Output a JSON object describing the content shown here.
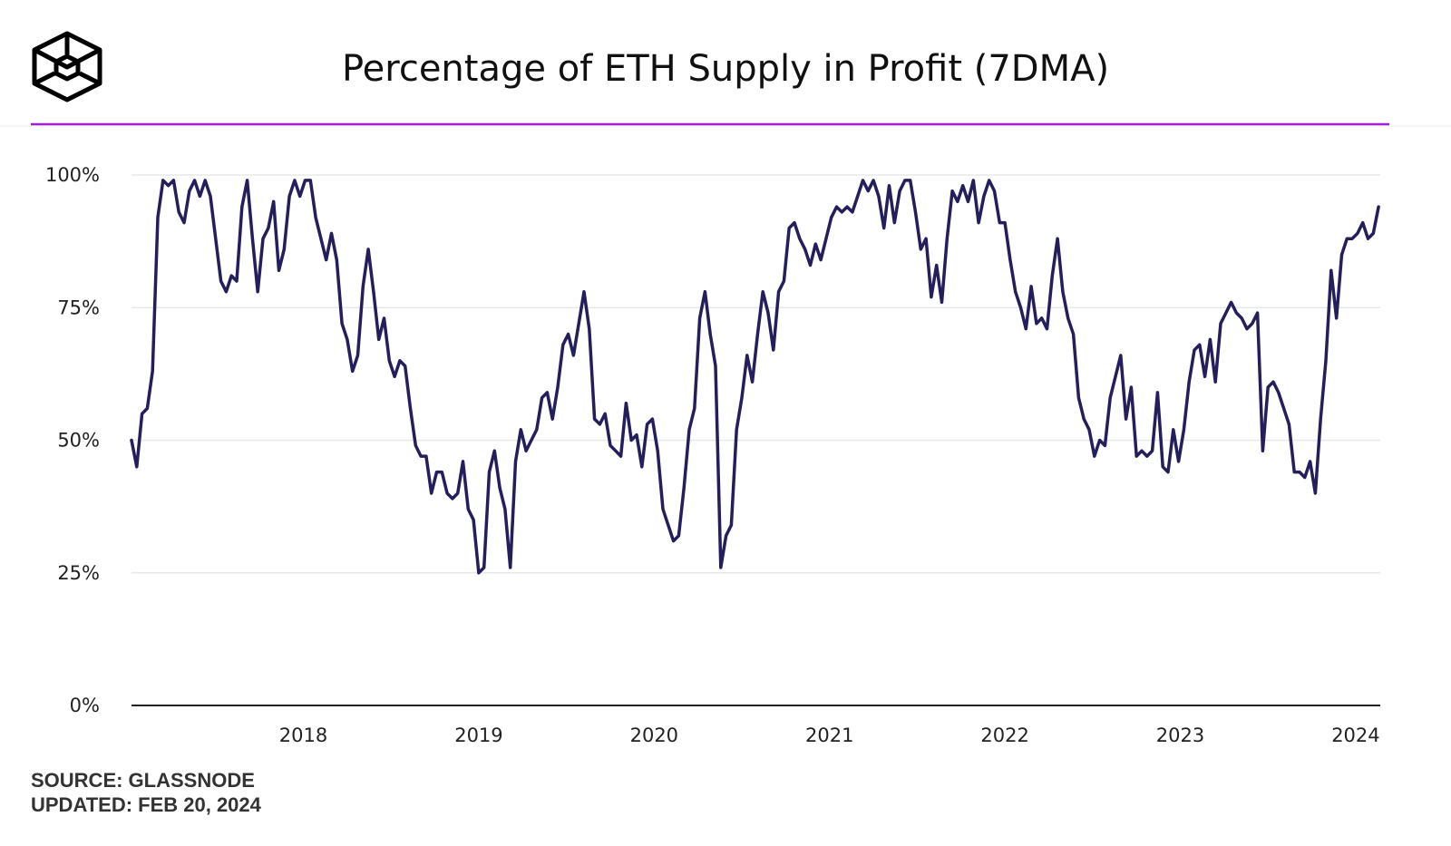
{
  "chart_data": {
    "type": "line",
    "title": "Percentage of ETH Supply in Profit (7DMA)",
    "notes": [
      "SOURCE: GLASSNODE",
      "UPDATED: FEB 20, 2024"
    ],
    "color": "#241f5c",
    "grid": true,
    "xlim": [
      2017.02,
      2024.14
    ],
    "xticks": [
      2018,
      2019,
      2020,
      2021,
      2022,
      2023,
      2024
    ],
    "ylim": [
      0,
      100
    ],
    "yticks": [
      {
        "value": 0,
        "label": "0%"
      },
      {
        "value": 25,
        "label": "25%"
      },
      {
        "value": 50,
        "label": "50%"
      },
      {
        "value": 75,
        "label": "75%"
      },
      {
        "value": 100,
        "label": "100%"
      }
    ],
    "x": [
      2017.02,
      2017.05,
      2017.08,
      2017.11,
      2017.14,
      2017.17,
      2017.2,
      2017.23,
      2017.26,
      2017.29,
      2017.32,
      2017.35,
      2017.38,
      2017.41,
      2017.44,
      2017.47,
      2017.5,
      2017.53,
      2017.56,
      2017.59,
      2017.62,
      2017.65,
      2017.68,
      2017.71,
      2017.74,
      2017.77,
      2017.8,
      2017.83,
      2017.86,
      2017.89,
      2017.92,
      2017.95,
      2017.98,
      2018.01,
      2018.04,
      2018.07,
      2018.1,
      2018.13,
      2018.16,
      2018.19,
      2018.22,
      2018.25,
      2018.28,
      2018.31,
      2018.34,
      2018.37,
      2018.4,
      2018.43,
      2018.46,
      2018.49,
      2018.52,
      2018.55,
      2018.58,
      2018.61,
      2018.64,
      2018.67,
      2018.7,
      2018.73,
      2018.76,
      2018.79,
      2018.82,
      2018.85,
      2018.88,
      2018.91,
      2018.94,
      2018.97,
      2019,
      2019.03,
      2019.06,
      2019.09,
      2019.12,
      2019.15,
      2019.18,
      2019.21,
      2019.24,
      2019.27,
      2019.3,
      2019.33,
      2019.36,
      2019.39,
      2019.42,
      2019.45,
      2019.48,
      2019.51,
      2019.54,
      2019.57,
      2019.6,
      2019.63,
      2019.66,
      2019.69,
      2019.72,
      2019.75,
      2019.78,
      2019.81,
      2019.84,
      2019.87,
      2019.9,
      2019.93,
      2019.96,
      2019.99,
      2020.02,
      2020.05,
      2020.08,
      2020.11,
      2020.14,
      2020.17,
      2020.2,
      2020.23,
      2020.26,
      2020.29,
      2020.32,
      2020.35,
      2020.38,
      2020.41,
      2020.44,
      2020.47,
      2020.5,
      2020.53,
      2020.56,
      2020.59,
      2020.62,
      2020.65,
      2020.68,
      2020.71,
      2020.74,
      2020.77,
      2020.8,
      2020.83,
      2020.86,
      2020.89,
      2020.92,
      2020.95,
      2020.98,
      2021.01,
      2021.04,
      2021.07,
      2021.1,
      2021.13,
      2021.16,
      2021.19,
      2021.22,
      2021.25,
      2021.28,
      2021.31,
      2021.34,
      2021.37,
      2021.4,
      2021.43,
      2021.46,
      2021.49,
      2021.52,
      2021.55,
      2021.58,
      2021.61,
      2021.64,
      2021.67,
      2021.7,
      2021.73,
      2021.76,
      2021.79,
      2021.82,
      2021.85,
      2021.88,
      2021.91,
      2021.94,
      2021.97,
      2022,
      2022.03,
      2022.06,
      2022.09,
      2022.12,
      2022.15,
      2022.18,
      2022.21,
      2022.24,
      2022.27,
      2022.3,
      2022.33,
      2022.36,
      2022.39,
      2022.42,
      2022.45,
      2022.48,
      2022.51,
      2022.54,
      2022.57,
      2022.6,
      2022.63,
      2022.66,
      2022.69,
      2022.72,
      2022.75,
      2022.78,
      2022.81,
      2022.84,
      2022.87,
      2022.9,
      2022.93,
      2022.96,
      2022.99,
      2023.02,
      2023.05,
      2023.08,
      2023.11,
      2023.14,
      2023.17,
      2023.2,
      2023.23,
      2023.26,
      2023.29,
      2023.32,
      2023.35,
      2023.38,
      2023.41,
      2023.44,
      2023.47,
      2023.5,
      2023.53,
      2023.56,
      2023.59,
      2023.62,
      2023.65,
      2023.68,
      2023.71,
      2023.74,
      2023.77,
      2023.8,
      2023.83,
      2023.86,
      2023.89,
      2023.92,
      2023.95,
      2023.98,
      2024.01,
      2024.04,
      2024.07,
      2024.1,
      2024.13
    ],
    "values": [
      50,
      45,
      55,
      56,
      63,
      92,
      99,
      98,
      99,
      93,
      91,
      97,
      99,
      96,
      99,
      96,
      88,
      80,
      78,
      81,
      80,
      94,
      99,
      88,
      78,
      88,
      90,
      95,
      82,
      86,
      96,
      99,
      96,
      99,
      99,
      92,
      88,
      84,
      89,
      84,
      72,
      69,
      63,
      66,
      79,
      86,
      78,
      69,
      73,
      65,
      62,
      65,
      64,
      56,
      49,
      47,
      47,
      40,
      44,
      44,
      40,
      39,
      40,
      46,
      37,
      35,
      25,
      26,
      44,
      48,
      41,
      37,
      26,
      46,
      52,
      48,
      50,
      52,
      58,
      59,
      54,
      60,
      68,
      70,
      66,
      72,
      78,
      71,
      54,
      53,
      55,
      49,
      48,
      47,
      57,
      50,
      51,
      45,
      53,
      54,
      48,
      37,
      34,
      31,
      32,
      41,
      52,
      56,
      73,
      78,
      70,
      64,
      26,
      32,
      34,
      52,
      58,
      66,
      61,
      70,
      78,
      74,
      67,
      78,
      80,
      90,
      91,
      88,
      86,
      83,
      87,
      84,
      88,
      92,
      94,
      93,
      94,
      93,
      96,
      99,
      97,
      99,
      96,
      90,
      98,
      91,
      97,
      99,
      99,
      93,
      86,
      88,
      77,
      83,
      76,
      88,
      97,
      95,
      98,
      95,
      99,
      91,
      96,
      99,
      97,
      91,
      91,
      84,
      78,
      75,
      71,
      79,
      72,
      73,
      71,
      81,
      88,
      78,
      73,
      70,
      58,
      54,
      52,
      47,
      50,
      49,
      58,
      62,
      66,
      54,
      60,
      47,
      48,
      47,
      48,
      59,
      45,
      44,
      52,
      46,
      52,
      61,
      67,
      68,
      62,
      69,
      61,
      72,
      74,
      76,
      74,
      73,
      71,
      72,
      74,
      48,
      60,
      61,
      59,
      56,
      53,
      44,
      44,
      43,
      46,
      40,
      54,
      65,
      82,
      73,
      85,
      88,
      88,
      89,
      91,
      88,
      89,
      94
    ]
  }
}
